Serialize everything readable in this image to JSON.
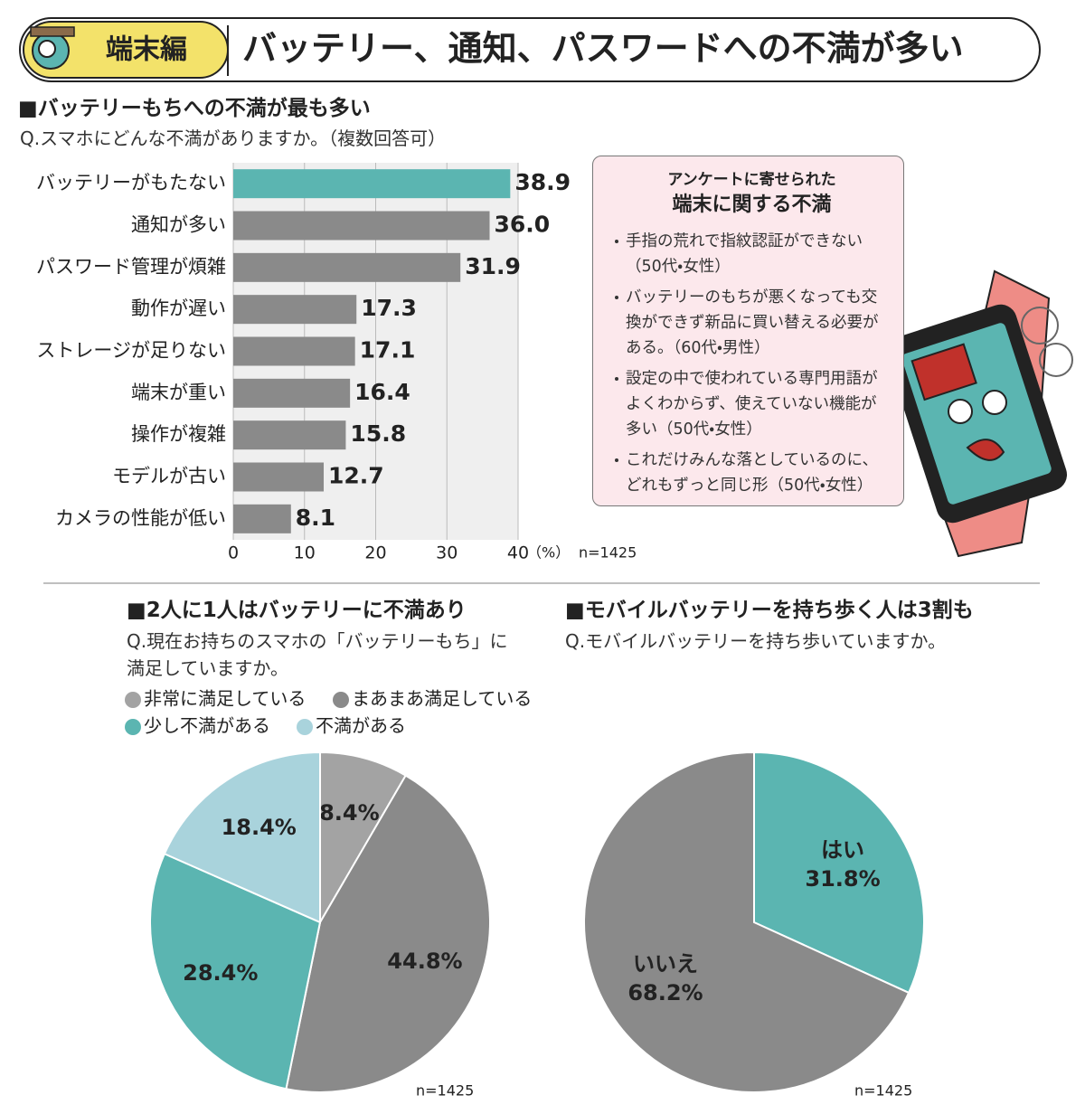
{
  "header": {
    "badge": "端末編",
    "title": "バッテリー、通知、パスワードへの不満が多い"
  },
  "comments": {
    "heading": [
      "アンケートに寄せられた",
      "端末に関する不満"
    ],
    "items": [
      "手指の荒れで指紋認証ができない（50代・女性）",
      "バッテリーのもちが悪くなっても交換ができず新品に買い替える必要がある。（60代・男性）",
      "設定の中で使われている専門用語がよくわからず、使えていない機能が多い（50代・女性）",
      "これだけみんな落としているのに、どれもずっと同じ形（50代・女性）"
    ]
  },
  "chart_data": [
    {
      "type": "hbar",
      "title": "■バッテリーもちへの不満が最も多い",
      "subtitle": "Q.スマホにどんな不満がありますか。（複数回答可）",
      "categories": [
        "バッテリーがもたない",
        "通知が多い",
        "パスワード管理が煩雑",
        "動作が遅い",
        "ストレージが足りない",
        "端末が重い",
        "操作が複雑",
        "モデルが古い",
        "カメラの性能が低い"
      ],
      "values": [
        38.9,
        36.0,
        31.9,
        17.3,
        17.1,
        16.4,
        15.8,
        12.7,
        8.1
      ],
      "value_labels": [
        "38.9",
        "36.0",
        "31.9",
        "17.3",
        "17.1",
        "16.4",
        "15.8",
        "12.7",
        "8.1"
      ],
      "colors": [
        "#5bb5b1",
        "#8a8a8a",
        "#8a8a8a",
        "#8a8a8a",
        "#8a8a8a",
        "#8a8a8a",
        "#8a8a8a",
        "#8a8a8a",
        "#8a8a8a"
      ],
      "xlim": [
        0,
        40
      ],
      "xticks": [
        0,
        10,
        20,
        30,
        40
      ],
      "x_unit": "（%）",
      "grid": true,
      "note": "n=1425"
    },
    {
      "type": "pie",
      "title": "■2人に1人はバッテリーに不満あり",
      "subtitle": "Q.現在お持ちのスマホの「バッテリーもち」に満足していますか。",
      "categories": [
        "非常に満足している",
        "まあまあ満足している",
        "少し不満がある",
        "不満がある"
      ],
      "values": [
        8.4,
        44.8,
        28.4,
        18.4
      ],
      "value_labels": [
        "8.4%",
        "44.8%",
        "28.4%",
        "18.4%"
      ],
      "colors": [
        "#a3a3a3",
        "#8a8a8a",
        "#5bb5b1",
        "#a9d3dc"
      ],
      "value_label_colors": [
        "#222222",
        "#ffffff",
        "#222222",
        "#222222"
      ],
      "legend": true,
      "note": "n=1425"
    },
    {
      "type": "pie",
      "title": "■モバイルバッテリーを持ち歩く人は3割も",
      "subtitle": "Q.モバイルバッテリーを持ち歩いていますか。",
      "categories": [
        "はい",
        "いいえ"
      ],
      "values": [
        31.8,
        68.2
      ],
      "value_labels": [
        "31.8%",
        "68.2%"
      ],
      "colors": [
        "#5bb5b1",
        "#8a8a8a"
      ],
      "value_label_colors": [
        "#222222",
        "#ffffff"
      ],
      "legend": false,
      "note": "n=1425"
    }
  ]
}
